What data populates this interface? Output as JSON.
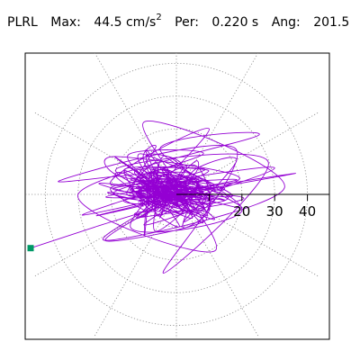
{
  "header": {
    "station": "PLRL",
    "max_label": "Max:",
    "max_value": "44.5 cm/s",
    "max_exponent": "2",
    "per_label": "Per:",
    "per_value": "0.220 s",
    "ang_label": "Ang:",
    "ang_value": "201.5"
  },
  "chart_data": {
    "type": "scatter",
    "subtype": "polar particle-motion trace",
    "radial_ticks": [
      10,
      20,
      30,
      40
    ],
    "radial_tick_labels": [
      "20",
      "30",
      "40"
    ],
    "rmax": 50,
    "grid": "dotted rings and radial lines every 30 degrees",
    "trace_color": "#9400d3",
    "marker_color": "#009966",
    "max_point": {
      "x": -44.5,
      "y": -16.4
    },
    "anchors": [
      {
        "x": -44.5,
        "y": -16.4
      },
      {
        "x": -25,
        "y": -10
      },
      {
        "x": 30,
        "y": 8
      },
      {
        "x": -20,
        "y": 3
      },
      {
        "x": 10,
        "y": 20
      },
      {
        "x": -14,
        "y": -10
      },
      {
        "x": 20,
        "y": -5
      },
      {
        "x": -5,
        "y": 14
      },
      {
        "x": 25,
        "y": 18
      },
      {
        "x": -30,
        "y": 0
      },
      {
        "x": 12,
        "y": -17
      },
      {
        "x": -10,
        "y": 22
      },
      {
        "x": 33,
        "y": 2
      },
      {
        "x": -22,
        "y": -14
      },
      {
        "x": 5,
        "y": 6
      },
      {
        "x": -36,
        "y": 4
      },
      {
        "x": 18,
        "y": 14
      },
      {
        "x": -4,
        "y": -24
      },
      {
        "x": 28,
        "y": 10
      },
      {
        "x": -18,
        "y": 8
      },
      {
        "x": 3,
        "y": -3
      }
    ]
  }
}
